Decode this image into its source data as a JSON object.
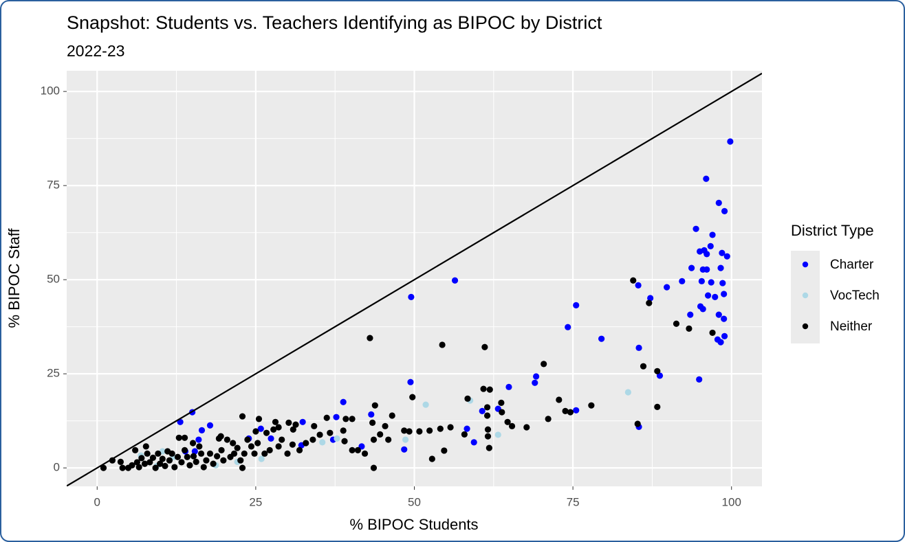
{
  "chart_data": {
    "type": "scatter",
    "title": "Snapshot: Students vs. Teachers Identifying as BIPOC by District",
    "subtitle": "2022-23",
    "x_label": "% BIPOC Students",
    "y_label": "% BIPOC Staff",
    "legend_title": "District Type",
    "legend_position": "right",
    "grid": true,
    "xlim": [
      -4.8,
      104.8
    ],
    "ylim": [
      -4.9,
      105.5
    ],
    "xticks": [
      0,
      25,
      50,
      75,
      100
    ],
    "yticks": [
      0,
      25,
      50,
      75,
      100
    ],
    "xminor": [
      12.5,
      37.5,
      62.5,
      87.5
    ],
    "yminor": [
      12.5,
      37.5,
      62.5,
      87.5
    ],
    "abline": {
      "slope": 1,
      "intercept": 0,
      "color": "#000000"
    },
    "series": [
      {
        "name": "Charter",
        "color": "#0000ff",
        "x": [
          99.8,
          96.0,
          98.0,
          98.9,
          94.4,
          97.0,
          98.5,
          99.3,
          95.0,
          96.1,
          96.7,
          95.7,
          93.7,
          95.5,
          96.1,
          98.3,
          92.2,
          95.3,
          96.8,
          98.6,
          89.8,
          85.3,
          56.4,
          49.5,
          87.2,
          96.3,
          97.4,
          98.8,
          95.1,
          95.5,
          93.5,
          98.0,
          98.8,
          98.9,
          97.8,
          98.3,
          79.5,
          85.4,
          75.5,
          74.2,
          88.7,
          94.9,
          49.4,
          64.9,
          69.2,
          69.0,
          38.8,
          37.7,
          43.2,
          60.7,
          63.2,
          75.5,
          58.3,
          59.4,
          85.4,
          15.0,
          13.1,
          17.8,
          16.5,
          16.0,
          32.4,
          32.2,
          25.8,
          27.4,
          23.9,
          37.2,
          41.7,
          48.4,
          13.9,
          15.4
        ],
        "y": [
          86.7,
          76.8,
          70.4,
          68.2,
          63.5,
          61.9,
          57.1,
          56.2,
          57.5,
          56.8,
          58.9,
          57.8,
          53.1,
          52.7,
          52.7,
          53.1,
          49.6,
          49.6,
          49.3,
          49.1,
          48.0,
          48.5,
          49.8,
          45.4,
          45.1,
          45.8,
          45.4,
          46.2,
          42.9,
          42.2,
          40.7,
          40.7,
          39.6,
          35.0,
          34.1,
          33.4,
          34.3,
          31.9,
          43.2,
          37.4,
          24.5,
          23.5,
          22.8,
          21.5,
          24.3,
          22.6,
          17.5,
          13.5,
          14.2,
          15.1,
          15.7,
          15.3,
          10.4,
          6.8,
          10.9,
          14.8,
          12.2,
          11.3,
          10.0,
          7.5,
          12.2,
          6.0,
          10.4,
          7.8,
          7.8,
          7.5,
          5.7,
          4.9,
          4.4,
          4.4
        ]
      },
      {
        "name": "VocTech",
        "color": "#add8e6",
        "x": [
          83.7,
          51.8,
          58.8,
          63.2,
          48.6,
          35.5,
          10.3,
          6.9,
          18.7,
          12.0,
          25.9,
          37.8,
          22.1,
          9.4
        ],
        "y": [
          20.1,
          16.8,
          17.9,
          8.8,
          7.5,
          6.8,
          4.4,
          3.3,
          0.7,
          2.9,
          2.4,
          7.8,
          1.6,
          0.5
        ]
      },
      {
        "name": "Neither",
        "color": "#000000",
        "x": [
          84.5,
          87.0,
          91.3,
          93.3,
          97.0,
          86.1,
          88.3,
          88.3,
          85.2,
          77.9,
          72.8,
          73.8,
          74.6,
          71.1,
          70.4,
          67.7,
          65.4,
          63.7,
          60.9,
          61.9,
          61.1,
          54.4,
          43.0,
          58.4,
          61.5,
          61.5,
          61.6,
          61.6,
          61.8,
          49.7,
          43.8,
          43.4,
          39.2,
          40.2,
          36.2,
          34.2,
          30.2,
          31.3,
          22.9,
          25.5,
          28.1,
          57.9,
          55.7,
          54.1,
          52.4,
          50.8,
          48.4,
          49.2,
          54.7,
          52.8,
          45.9,
          44.6,
          43.6,
          43.6,
          42.2,
          41.1,
          40.2,
          39.0,
          38.8,
          36.7,
          35.1,
          34.0,
          32.9,
          31.9,
          30.8,
          30.0,
          28.6,
          29.1,
          27.8,
          27.2,
          26.4,
          25.3,
          24.8,
          24.3,
          23.7,
          23.2,
          22.6,
          22.9,
          22.1,
          21.6,
          21.0,
          20.5,
          19.9,
          19.6,
          19.2,
          18.9,
          18.3,
          17.8,
          17.2,
          16.8,
          16.4,
          16.1,
          15.6,
          15.2,
          14.6,
          14.2,
          13.8,
          13.3,
          12.9,
          12.7,
          12.2,
          11.8,
          11.4,
          11.1,
          10.7,
          10.3,
          9.9,
          9.6,
          9.2,
          8.8,
          8.3,
          7.9,
          7.7,
          7.5,
          7.0,
          6.6,
          6.3,
          6.0,
          5.5,
          4.9,
          4.0,
          3.7,
          2.4,
          1.0,
          13.8,
          15.1,
          19.5,
          21.4,
          25.0,
          26.7,
          28.6,
          30.9,
          46.5,
          45.4,
          63.8,
          64.7
        ],
        "y": [
          49.8,
          43.8,
          38.3,
          37.0,
          35.9,
          27.0,
          25.7,
          16.2,
          11.7,
          16.6,
          18.1,
          15.1,
          14.8,
          13.0,
          27.6,
          10.8,
          11.1,
          17.3,
          21.0,
          20.8,
          32.1,
          32.7,
          34.5,
          18.4,
          16.1,
          13.9,
          10.2,
          8.4,
          5.3,
          18.8,
          16.6,
          12.0,
          13.0,
          13.0,
          13.3,
          11.1,
          12.0,
          11.5,
          13.7,
          13.0,
          12.2,
          8.9,
          10.8,
          10.4,
          9.9,
          9.7,
          9.9,
          9.7,
          4.6,
          2.4,
          7.5,
          8.9,
          7.5,
          0.0,
          3.8,
          4.7,
          4.7,
          7.1,
          9.9,
          9.3,
          8.8,
          7.5,
          6.6,
          4.7,
          6.2,
          3.8,
          5.7,
          7.5,
          10.2,
          4.7,
          3.8,
          6.6,
          3.8,
          5.7,
          7.5,
          3.8,
          2.0,
          0.0,
          5.3,
          3.8,
          2.9,
          7.5,
          2.0,
          4.7,
          7.8,
          3.1,
          1.1,
          3.8,
          2.0,
          0.2,
          3.8,
          5.7,
          1.6,
          3.1,
          0.7,
          2.9,
          4.7,
          1.5,
          8.0,
          2.9,
          0.2,
          3.8,
          2.0,
          4.4,
          0.5,
          2.4,
          1.1,
          3.8,
          0.0,
          2.7,
          1.5,
          3.8,
          5.7,
          1.1,
          2.6,
          0.2,
          1.5,
          4.7,
          0.7,
          0.0,
          0.0,
          1.6,
          2.0,
          0.0,
          8.0,
          6.6,
          8.4,
          6.6,
          9.7,
          9.3,
          10.8,
          10.2,
          13.9,
          11.1,
          14.8,
          12.2
        ]
      }
    ]
  }
}
